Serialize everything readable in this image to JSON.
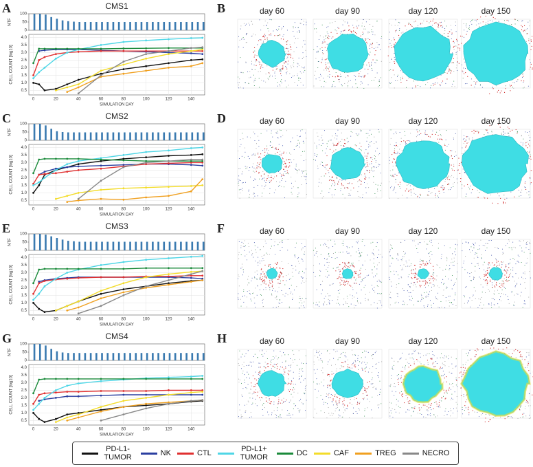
{
  "chart_data": [
    {
      "type": "line",
      "panel": "A",
      "title": "CMS1",
      "xlabel": "SIMULATION DAY",
      "ylabel": "CELL COUNT [log10]",
      "xlim": [
        -4,
        152
      ],
      "xticks": [
        0,
        20,
        40,
        60,
        80,
        100,
        120,
        140
      ],
      "ylim": [
        0.2,
        4.2
      ],
      "yticks": [
        0.5,
        {
          "value": 1,
          "label": "1.0"
        },
        1.5,
        {
          "value": 2,
          "label": "2.0"
        },
        2.5,
        {
          "value": 3,
          "label": "3.0"
        },
        3.5,
        {
          "value": 4,
          "label": "4.0"
        }
      ],
      "grid": true,
      "x": [
        0,
        5,
        10,
        20,
        30,
        40,
        60,
        80,
        100,
        120,
        140,
        150
      ],
      "series": [
        {
          "name": "PD-L1- TUMOR",
          "color": "#111111",
          "values": [
            1.0,
            0.9,
            0.5,
            0.6,
            0.9,
            1.2,
            1.6,
            1.9,
            2.1,
            2.3,
            2.5,
            2.55
          ]
        },
        {
          "name": "NK",
          "color": "#2b3fa0",
          "values": [
            null,
            3.1,
            3.15,
            3.2,
            3.2,
            3.2,
            3.15,
            3.1,
            3.05,
            3.0,
            2.95,
            2.9
          ]
        },
        {
          "name": "CTL",
          "color": "#e03030",
          "values": [
            1.5,
            2.5,
            2.7,
            2.9,
            3.0,
            3.05,
            3.1,
            3.1,
            3.1,
            3.1,
            3.1,
            3.1
          ]
        },
        {
          "name": "PD-L1+ TUMOR",
          "color": "#4fd6e6",
          "values": [
            1.3,
            1.7,
            2.0,
            2.6,
            3.0,
            3.2,
            3.5,
            3.7,
            3.8,
            3.88,
            3.95,
            3.97
          ]
        },
        {
          "name": "DC",
          "color": "#1a8a3a",
          "values": [
            2.3,
            3.25,
            3.25,
            3.25,
            3.25,
            3.25,
            3.25,
            3.27,
            3.28,
            3.3,
            3.3,
            3.3
          ]
        },
        {
          "name": "CAF",
          "color": "#f3dc2a",
          "values": [
            null,
            null,
            null,
            0.5,
            0.7,
            0.9,
            1.8,
            2.2,
            2.6,
            2.9,
            3.1,
            3.2
          ]
        },
        {
          "name": "TREG",
          "color": "#f0a020",
          "values": [
            null,
            null,
            null,
            null,
            0.4,
            0.7,
            1.4,
            1.6,
            1.8,
            2.0,
            2.1,
            2.3
          ]
        },
        {
          "name": "NECRO",
          "color": "#888888",
          "values": [
            null,
            null,
            null,
            null,
            null,
            0.3,
            1.5,
            2.4,
            2.9,
            3.1,
            3.3,
            3.35
          ]
        }
      ],
      "ntf": {
        "type": "bar",
        "ylabel": "NTF",
        "color": "#3a7ab0",
        "ylim": [
          0,
          100
        ],
        "yticks": [
          0,
          50,
          100
        ],
        "x": [
          0,
          5,
          10,
          15,
          20,
          25,
          30,
          35,
          40,
          45,
          50,
          55,
          60,
          65,
          70,
          75,
          80,
          85,
          90,
          95,
          100,
          105,
          110,
          115,
          120,
          125,
          130,
          135,
          140,
          145,
          150
        ],
        "values": [
          100,
          100,
          95,
          80,
          70,
          60,
          55,
          52,
          50,
          50,
          50,
          50,
          50,
          50,
          50,
          50,
          50,
          50,
          50,
          50,
          50,
          50,
          50,
          50,
          50,
          50,
          50,
          50,
          50,
          50,
          50
        ]
      }
    },
    {
      "type": "line",
      "panel": "C",
      "title": "CMS2",
      "xlabel": "SIMULATION DAY",
      "ylabel": "CELL COUNT [log10]",
      "xlim": [
        -4,
        152
      ],
      "xticks": [
        0,
        20,
        40,
        60,
        80,
        100,
        120,
        140
      ],
      "ylim": [
        0.2,
        4.2
      ],
      "yticks": [
        0.5,
        {
          "value": 1,
          "label": "1.0"
        },
        1.5,
        {
          "value": 2,
          "label": "2.0"
        },
        2.5,
        {
          "value": 3,
          "label": "3.0"
        },
        3.5,
        {
          "value": 4,
          "label": "4.0"
        }
      ],
      "grid": true,
      "x": [
        0,
        5,
        10,
        20,
        30,
        40,
        60,
        80,
        100,
        120,
        140,
        150
      ],
      "series": [
        {
          "name": "PD-L1- TUMOR",
          "color": "#111111",
          "values": [
            1.0,
            1.5,
            2.2,
            2.5,
            2.7,
            2.9,
            3.1,
            3.25,
            3.35,
            3.45,
            3.5,
            3.55
          ]
        },
        {
          "name": "NK",
          "color": "#2b3fa0",
          "values": [
            null,
            2.2,
            2.4,
            2.6,
            2.7,
            2.75,
            2.8,
            2.85,
            2.9,
            2.9,
            2.85,
            2.8
          ]
        },
        {
          "name": "CTL",
          "color": "#e03030",
          "values": [
            1.6,
            2.2,
            2.25,
            2.3,
            2.4,
            2.5,
            2.6,
            2.75,
            2.9,
            2.95,
            3.0,
            3.0
          ]
        },
        {
          "name": "PD-L1+ TUMOR",
          "color": "#4fd6e6",
          "values": [
            1.5,
            1.7,
            2.0,
            2.5,
            2.9,
            3.1,
            3.3,
            3.5,
            3.7,
            3.8,
            3.95,
            4.0
          ]
        },
        {
          "name": "DC",
          "color": "#1a8a3a",
          "values": [
            2.3,
            3.2,
            3.25,
            3.25,
            3.25,
            3.25,
            3.2,
            3.15,
            3.1,
            3.1,
            3.1,
            3.1
          ]
        },
        {
          "name": "CAF",
          "color": "#f3dc2a",
          "values": [
            null,
            null,
            null,
            0.6,
            0.8,
            1.0,
            1.2,
            1.3,
            1.35,
            1.4,
            1.45,
            1.5
          ]
        },
        {
          "name": "TREG",
          "color": "#f0a020",
          "values": [
            null,
            null,
            null,
            null,
            0.4,
            0.5,
            0.6,
            0.55,
            0.7,
            0.8,
            1.1,
            1.9
          ]
        },
        {
          "name": "NECRO",
          "color": "#888888",
          "values": [
            null,
            null,
            null,
            null,
            null,
            0.6,
            1.8,
            2.7,
            3.0,
            3.1,
            3.2,
            3.2
          ]
        }
      ],
      "ntf": {
        "type": "bar",
        "ylabel": "NTF",
        "color": "#3a7ab0",
        "ylim": [
          0,
          100
        ],
        "yticks": [
          0,
          50,
          100
        ],
        "x": [
          0,
          5,
          10,
          15,
          20,
          25,
          30,
          35,
          40,
          45,
          50,
          55,
          60,
          65,
          70,
          75,
          80,
          85,
          90,
          95,
          100,
          105,
          110,
          115,
          120,
          125,
          130,
          135,
          140,
          145,
          150
        ],
        "values": [
          100,
          100,
          90,
          70,
          55,
          50,
          48,
          48,
          48,
          48,
          48,
          48,
          48,
          48,
          48,
          48,
          48,
          48,
          48,
          48,
          48,
          48,
          48,
          48,
          48,
          48,
          48,
          48,
          48,
          48,
          48
        ]
      }
    },
    {
      "type": "line",
      "panel": "E",
      "title": "CMS3",
      "xlabel": "SIMULATION DAY",
      "ylabel": "CELL COUNT [log10]",
      "xlim": [
        -4,
        152
      ],
      "xticks": [
        0,
        20,
        40,
        60,
        80,
        100,
        120,
        140
      ],
      "ylim": [
        0.2,
        4.2
      ],
      "yticks": [
        0.5,
        {
          "value": 1,
          "label": "1.0"
        },
        1.5,
        {
          "value": 2,
          "label": "2.0"
        },
        2.5,
        {
          "value": 3,
          "label": "3.0"
        },
        3.5,
        {
          "value": 4,
          "label": "4.0"
        }
      ],
      "grid": true,
      "x": [
        0,
        5,
        10,
        20,
        30,
        40,
        60,
        80,
        100,
        120,
        140,
        150
      ],
      "series": [
        {
          "name": "PD-L1- TUMOR",
          "color": "#111111",
          "values": [
            1.0,
            0.6,
            0.4,
            0.5,
            0.8,
            1.1,
            1.6,
            1.9,
            2.1,
            2.3,
            2.45,
            2.5
          ]
        },
        {
          "name": "NK",
          "color": "#2b3fa0",
          "values": [
            null,
            2.4,
            2.5,
            2.6,
            2.65,
            2.7,
            2.7,
            2.7,
            2.7,
            2.7,
            2.65,
            2.6
          ]
        },
        {
          "name": "CTL",
          "color": "#e03030",
          "values": [
            1.6,
            2.3,
            2.45,
            2.55,
            2.6,
            2.65,
            2.7,
            2.7,
            2.75,
            2.75,
            2.8,
            2.8
          ]
        },
        {
          "name": "PD-L1+ TUMOR",
          "color": "#4fd6e6",
          "values": [
            1.2,
            1.6,
            2.1,
            2.6,
            3.0,
            3.2,
            3.5,
            3.7,
            3.85,
            3.95,
            4.05,
            4.1
          ]
        },
        {
          "name": "DC",
          "color": "#1a8a3a",
          "values": [
            2.3,
            3.2,
            3.25,
            3.25,
            3.25,
            3.25,
            3.25,
            3.25,
            3.3,
            3.3,
            3.3,
            3.3
          ]
        },
        {
          "name": "CAF",
          "color": "#f3dc2a",
          "values": [
            null,
            null,
            null,
            0.5,
            0.8,
            1.1,
            1.8,
            2.3,
            2.7,
            2.9,
            3.05,
            3.1
          ]
        },
        {
          "name": "TREG",
          "color": "#f0a020",
          "values": [
            null,
            null,
            null,
            null,
            0.5,
            0.7,
            1.3,
            1.7,
            2.0,
            2.2,
            2.4,
            2.5
          ]
        },
        {
          "name": "NECRO",
          "color": "#888888",
          "values": [
            null,
            null,
            null,
            null,
            null,
            0.3,
            0.8,
            1.5,
            2.1,
            2.5,
            2.9,
            3.1
          ]
        }
      ],
      "ntf": {
        "type": "bar",
        "ylabel": "NTF",
        "color": "#3a7ab0",
        "ylim": [
          0,
          100
        ],
        "yticks": [
          0,
          50,
          100
        ],
        "x": [
          0,
          5,
          10,
          15,
          20,
          25,
          30,
          35,
          40,
          45,
          50,
          55,
          60,
          65,
          70,
          75,
          80,
          85,
          90,
          95,
          100,
          105,
          110,
          115,
          120,
          125,
          130,
          135,
          140,
          145,
          150
        ],
        "values": [
          100,
          100,
          95,
          85,
          75,
          65,
          58,
          55,
          52,
          52,
          52,
          52,
          52,
          52,
          52,
          52,
          52,
          52,
          52,
          52,
          52,
          52,
          52,
          52,
          52,
          52,
          52,
          52,
          52,
          52,
          52
        ]
      }
    },
    {
      "type": "line",
      "panel": "G",
      "title": "CMS4",
      "xlabel": "SIMULATION DAY",
      "ylabel": "CELL COUNT [log10]",
      "xlim": [
        -4,
        152
      ],
      "xticks": [
        0,
        20,
        40,
        60,
        80,
        100,
        120,
        140
      ],
      "ylim": [
        0.2,
        4.2
      ],
      "yticks": [
        0.5,
        {
          "value": 1,
          "label": "1.0"
        },
        1.5,
        {
          "value": 2,
          "label": "2.0"
        },
        2.5,
        {
          "value": 3,
          "label": "3.0"
        },
        3.5,
        {
          "value": 4,
          "label": "4.0"
        }
      ],
      "grid": true,
      "x": [
        0,
        5,
        10,
        20,
        30,
        40,
        60,
        80,
        100,
        120,
        140,
        150
      ],
      "series": [
        {
          "name": "PD-L1- TUMOR",
          "color": "#111111",
          "values": [
            1.0,
            0.6,
            0.4,
            0.6,
            0.9,
            1.0,
            1.2,
            1.4,
            1.5,
            1.6,
            1.75,
            1.8
          ]
        },
        {
          "name": "NK",
          "color": "#2b3fa0",
          "values": [
            null,
            1.8,
            1.9,
            2.0,
            2.1,
            2.1,
            2.15,
            2.2,
            2.2,
            2.2,
            2.2,
            2.2
          ]
        },
        {
          "name": "CTL",
          "color": "#e03030",
          "values": [
            1.6,
            2.2,
            2.3,
            2.35,
            2.4,
            2.4,
            2.45,
            2.45,
            2.45,
            2.5,
            2.5,
            2.5
          ]
        },
        {
          "name": "PD-L1+ TUMOR",
          "color": "#4fd6e6",
          "values": [
            1.2,
            1.6,
            2.0,
            2.5,
            2.8,
            2.95,
            3.1,
            3.2,
            3.3,
            3.35,
            3.4,
            3.45
          ]
        },
        {
          "name": "DC",
          "color": "#1a8a3a",
          "values": [
            2.3,
            3.2,
            3.25,
            3.25,
            3.25,
            3.25,
            3.25,
            3.25,
            3.25,
            3.25,
            3.25,
            3.25
          ]
        },
        {
          "name": "CAF",
          "color": "#f3dc2a",
          "values": [
            null,
            null,
            null,
            0.4,
            0.7,
            0.9,
            1.4,
            1.8,
            2.0,
            2.2,
            2.35,
            2.4
          ]
        },
        {
          "name": "TREG",
          "color": "#f0a020",
          "values": [
            null,
            null,
            null,
            null,
            0.5,
            0.7,
            1.1,
            1.4,
            1.6,
            1.7,
            1.8,
            1.85
          ]
        },
        {
          "name": "NECRO",
          "color": "#888888",
          "values": [
            null,
            null,
            null,
            null,
            null,
            null,
            0.5,
            0.9,
            1.3,
            1.6,
            1.8,
            1.85
          ]
        }
      ],
      "ntf": {
        "type": "bar",
        "ylabel": "NTF",
        "color": "#3a7ab0",
        "ylim": [
          0,
          100
        ],
        "yticks": [
          0,
          50,
          100
        ],
        "x": [
          0,
          5,
          10,
          15,
          20,
          25,
          30,
          35,
          40,
          45,
          50,
          55,
          60,
          65,
          70,
          75,
          80,
          85,
          90,
          95,
          100,
          105,
          110,
          115,
          120,
          125,
          130,
          135,
          140,
          145,
          150
        ],
        "values": [
          100,
          100,
          90,
          70,
          55,
          48,
          45,
          45,
          45,
          45,
          45,
          45,
          45,
          45,
          45,
          45,
          45,
          45,
          45,
          45,
          45,
          45,
          45,
          45,
          45,
          45,
          45,
          45,
          45,
          45,
          45
        ]
      }
    }
  ],
  "image_panels": [
    {
      "panel": "B",
      "days": [
        "day 60",
        "day 90",
        "day 120",
        "day 150"
      ]
    },
    {
      "panel": "D",
      "days": [
        "day 60",
        "day 90",
        "day 120",
        "day 150"
      ]
    },
    {
      "panel": "F",
      "days": [
        "day 60",
        "day 90",
        "day 120",
        "day 150"
      ]
    },
    {
      "panel": "H",
      "days": [
        "day 60",
        "day 90",
        "day 120",
        "day 150"
      ]
    }
  ]
}
